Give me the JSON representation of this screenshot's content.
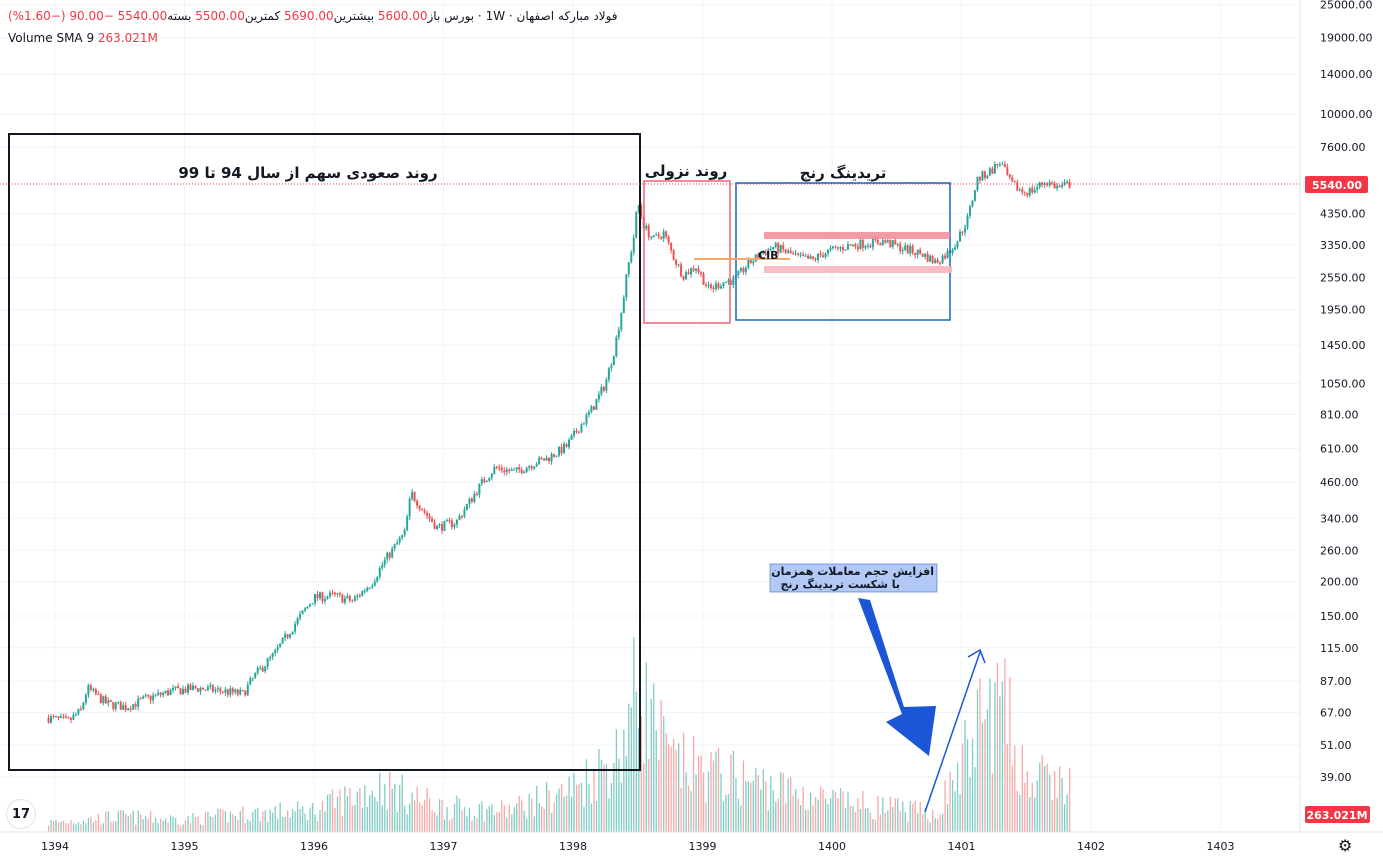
{
  "legend": {
    "symbol": "فولاد مبارکه اصفهان",
    "interval": "1W",
    "exchange": "بورس",
    "open_label": "باز",
    "open": "5600.00",
    "high_label": "بیشترین",
    "high": "5690.00",
    "low_label": "کمترین",
    "low": "5500.00",
    "close_label": "بسته",
    "close": "5540.00",
    "change": "−90.00",
    "change_pct": "(−1.60%)",
    "volume_label": "Volume SMA 9",
    "volume_value": "263.021M"
  },
  "chart_data": {
    "type": "candlestick",
    "scale": "log",
    "y_ticks": [
      25000,
      19000,
      14000,
      10000,
      7600,
      5540,
      4350,
      3350,
      2550,
      1950,
      1450,
      1050,
      810,
      610,
      460,
      340,
      260,
      200,
      150,
      115,
      87,
      67,
      51,
      39
    ],
    "y_tick_labels": [
      "25000.00",
      "19000.00",
      "14000.00",
      "10000.00",
      "7600.00",
      "4350.00",
      "3350.00",
      "2550.00",
      "1950.00",
      "1450.00",
      "1050.00",
      "810.00",
      "610.00",
      "460.00",
      "340.00",
      "260.00",
      "200.00",
      "150.00",
      "115.00",
      "87.00",
      "67.00",
      "51.00",
      "39.00"
    ],
    "x_labels": [
      "1394",
      "1395",
      "1396",
      "1397",
      "1398",
      "1399",
      "1400",
      "1401",
      "1402",
      "1403"
    ],
    "last_price": 5540,
    "last_price_label": "5540.00",
    "volume_sma_label": "263.021M",
    "price_path": [
      [
        1393.95,
        64
      ],
      [
        1394.1,
        62
      ],
      [
        1394.2,
        68
      ],
      [
        1394.25,
        82
      ],
      [
        1394.4,
        72
      ],
      [
        1394.55,
        70
      ],
      [
        1394.7,
        75
      ],
      [
        1394.9,
        80
      ],
      [
        1395.1,
        82
      ],
      [
        1395.3,
        80
      ],
      [
        1395.45,
        78
      ],
      [
        1395.55,
        92
      ],
      [
        1395.7,
        110
      ],
      [
        1395.85,
        140
      ],
      [
        1396.0,
        175
      ],
      [
        1396.15,
        178
      ],
      [
        1396.3,
        170
      ],
      [
        1396.45,
        200
      ],
      [
        1396.55,
        240
      ],
      [
        1396.7,
        300
      ],
      [
        1396.75,
        420
      ],
      [
        1396.85,
        360
      ],
      [
        1396.95,
        315
      ],
      [
        1397.1,
        330
      ],
      [
        1397.2,
        390
      ],
      [
        1397.3,
        460
      ],
      [
        1397.4,
        520
      ],
      [
        1397.55,
        500
      ],
      [
        1397.7,
        540
      ],
      [
        1397.8,
        560
      ],
      [
        1397.95,
        620
      ],
      [
        1398.05,
        730
      ],
      [
        1398.15,
        850
      ],
      [
        1398.25,
        1050
      ],
      [
        1398.32,
        1400
      ],
      [
        1398.38,
        2000
      ],
      [
        1398.42,
        2700
      ],
      [
        1398.47,
        3600
      ],
      [
        1398.5,
        4800
      ],
      [
        1398.55,
        3900
      ],
      [
        1398.62,
        3500
      ],
      [
        1398.7,
        3700
      ],
      [
        1398.78,
        3000
      ],
      [
        1398.85,
        2600
      ],
      [
        1398.95,
        2800
      ],
      [
        1399.05,
        2300
      ],
      [
        1399.15,
        2450
      ],
      [
        1399.25,
        2500
      ],
      [
        1399.35,
        2850
      ],
      [
        1399.45,
        3100
      ],
      [
        1399.55,
        3300
      ],
      [
        1399.65,
        3150
      ],
      [
        1399.75,
        3000
      ],
      [
        1399.85,
        2950
      ],
      [
        1399.95,
        3150
      ],
      [
        1400.1,
        3300
      ],
      [
        1400.25,
        3400
      ],
      [
        1400.4,
        3450
      ],
      [
        1400.55,
        3250
      ],
      [
        1400.7,
        3100
      ],
      [
        1400.8,
        2900
      ],
      [
        1400.9,
        3150
      ],
      [
        1400.97,
        3500
      ],
      [
        1401.05,
        4200
      ],
      [
        1401.12,
        5800
      ],
      [
        1401.22,
        6200
      ],
      [
        1401.3,
        6700
      ],
      [
        1401.38,
        5600
      ],
      [
        1401.48,
        5200
      ],
      [
        1401.55,
        5300
      ],
      [
        1401.65,
        5700
      ],
      [
        1401.75,
        5400
      ],
      [
        1401.85,
        5600
      ]
    ],
    "volume_path": [
      [
        1393.95,
        0.06
      ],
      [
        1394.5,
        0.1
      ],
      [
        1395.0,
        0.08
      ],
      [
        1395.5,
        0.12
      ],
      [
        1396.0,
        0.14
      ],
      [
        1396.5,
        0.3
      ],
      [
        1397.0,
        0.16
      ],
      [
        1397.5,
        0.14
      ],
      [
        1398.0,
        0.28
      ],
      [
        1398.35,
        0.5
      ],
      [
        1398.5,
        0.95
      ],
      [
        1398.75,
        0.45
      ],
      [
        1399.0,
        0.4
      ],
      [
        1399.5,
        0.3
      ],
      [
        1400.0,
        0.2
      ],
      [
        1400.5,
        0.15
      ],
      [
        1400.8,
        0.12
      ],
      [
        1400.95,
        0.35
      ],
      [
        1401.15,
        0.72
      ],
      [
        1401.3,
        0.85
      ],
      [
        1401.5,
        0.35
      ],
      [
        1401.85,
        0.3
      ]
    ],
    "annotations": {
      "uptrend_label": "روند صعودی سهم از سال 94 تا 99",
      "downtrend_label": "روند نزولی",
      "range_label": "تریدینگ رنج",
      "cib_label": "CIB",
      "volume_note_line1": "افزایش حجم معاملات همزمان",
      "volume_note_line2": "با شکست تریدینگ رنج"
    },
    "colors": {
      "up": "#26a69a",
      "down": "#ef5350",
      "up_vol": "#7fcdc4",
      "down_vol": "#f7a9a8",
      "price_line": "#f23645",
      "uptrend_box": "#131722",
      "downtrend_box": "#f06276",
      "range_box": "#1565c0",
      "range_band": "#f28b95",
      "cib_line": "#f5a96a",
      "arrow": "#1a56d6",
      "note_bg": "#b3c9f5"
    }
  }
}
